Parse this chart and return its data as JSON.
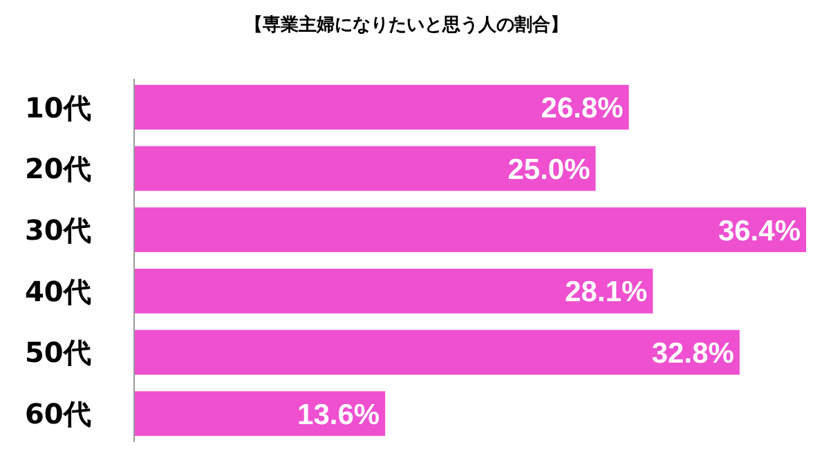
{
  "chart_data": {
    "type": "bar",
    "orientation": "horizontal",
    "title": "【専業主婦になりたいと思う人の割合】",
    "categories": [
      "10代",
      "20代",
      "30代",
      "40代",
      "50代",
      "60代"
    ],
    "values": [
      26.8,
      25.0,
      36.4,
      28.1,
      32.8,
      13.6
    ],
    "value_labels": [
      "26.8%",
      "25.0%",
      "36.4%",
      "28.1%",
      "32.8%",
      "13.6%"
    ],
    "color": "#ee50d0"
  }
}
